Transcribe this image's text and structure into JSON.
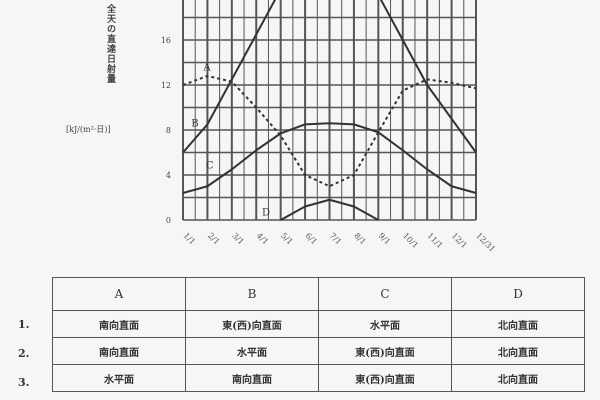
{
  "chart_data": {
    "type": "line",
    "ylabel": "全天の直達日射量",
    "yunit": "[kJ/(m²·日)]",
    "ylim": [
      0,
      20
    ],
    "yticks": [
      0,
      4,
      8,
      12,
      16
    ],
    "grid": true,
    "x": [
      0,
      1,
      2,
      3,
      4,
      5,
      6,
      7,
      8,
      9,
      10,
      11,
      12
    ],
    "xticks": [
      "1/1",
      "2/1",
      "3/1",
      "4/1",
      "5/1",
      "6/1",
      "7/1",
      "8/1",
      "9/1",
      "10/1",
      "11/1",
      "12/1",
      "12/31"
    ],
    "series": [
      {
        "name": "A",
        "style": "dashed",
        "values": [
          12,
          12.8,
          12.3,
          10,
          7.5,
          4,
          3,
          4,
          7.8,
          11.5,
          12.5,
          12.2,
          11.7
        ]
      },
      {
        "name": "B",
        "style": "solid",
        "values": [
          6,
          8.5,
          12.5,
          16.5,
          20.5,
          22,
          22.5,
          22,
          20,
          16,
          12,
          9,
          6
        ]
      },
      {
        "name": "C",
        "style": "solid",
        "values": [
          2.4,
          3,
          4.5,
          6.2,
          7.7,
          8.5,
          8.6,
          8.5,
          7.8,
          6.2,
          4.5,
          3,
          2.4
        ]
      },
      {
        "name": "D",
        "style": "solid",
        "values": [
          null,
          null,
          null,
          null,
          0,
          1.2,
          1.8,
          1.2,
          0,
          null,
          null,
          null,
          null
        ]
      }
    ]
  },
  "table": {
    "headers": [
      "A",
      "B",
      "C",
      "D"
    ],
    "rows": [
      {
        "label": "1.",
        "cells": [
          "南向直面",
          "東(西)向直面",
          "水平面",
          "北向直面"
        ]
      },
      {
        "label": "2.",
        "cells": [
          "南向直面",
          "水平面",
          "東(西)向直面",
          "北向直面"
        ]
      },
      {
        "label": "3.",
        "cells": [
          "水平面",
          "南向直面",
          "東(西)向直面",
          "北向直面"
        ]
      }
    ]
  }
}
